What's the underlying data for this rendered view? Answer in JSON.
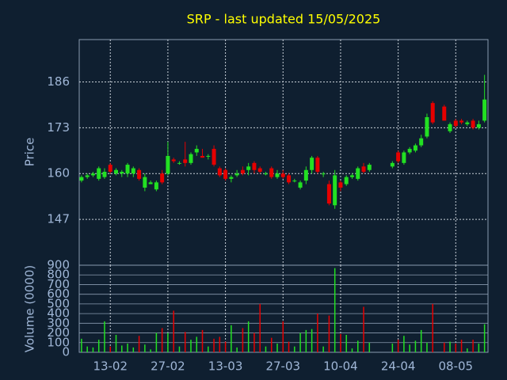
{
  "chart_data": [
    {
      "type": "candlestick",
      "title": "SRP - last updated 15/05/2025",
      "ylabel": "Price",
      "up_color": "#22e022",
      "down_color": "#e60000",
      "x": [
        "06-02",
        "07-02",
        "10-02",
        "11-02",
        "12-02",
        "13-02",
        "14-02",
        "17-02",
        "18-02",
        "19-02",
        "20-02",
        "21-02",
        "24-02",
        "25-02",
        "26-02",
        "27-02",
        "28-02",
        "03-03",
        "04-03",
        "05-03",
        "06-03",
        "07-03",
        "10-03",
        "11-03",
        "12-03",
        "13-03",
        "14-03",
        "17-03",
        "18-03",
        "19-03",
        "20-03",
        "21-03",
        "24-03",
        "25-03",
        "26-03",
        "27-03",
        "28-03",
        "31-03",
        "01-04",
        "02-04",
        "03-04",
        "04-04",
        "07-04",
        "08-04",
        "09-04",
        "10-04",
        "11-04",
        "14-04",
        "15-04",
        "16-04",
        "17-04",
        "18-04",
        "21-04",
        "22-04",
        "23-04",
        "24-04",
        "25-04",
        "28-04",
        "29-04",
        "30-04",
        "01-05",
        "02-05",
        "05-05",
        "06-05",
        "07-05",
        "08-05",
        "09-05",
        "12-05",
        "13-05",
        "14-05",
        "15-05"
      ],
      "open": [
        158,
        159,
        159.5,
        158.5,
        159,
        162.5,
        160,
        160,
        160,
        160,
        161,
        156,
        157,
        155.5,
        160,
        160,
        164,
        163,
        164,
        163,
        166,
        165,
        165,
        167,
        161.5,
        161,
        158.5,
        159.5,
        161,
        161,
        163,
        161.5,
        160,
        161.5,
        159,
        160,
        159.5,
        158,
        156,
        158,
        161,
        164.5,
        160,
        157,
        151,
        157.5,
        157,
        159,
        158.5,
        162,
        161,
        null,
        null,
        null,
        162,
        166,
        163,
        166,
        166.5,
        168,
        170.5,
        180,
        null,
        179,
        172,
        175,
        175,
        174,
        175,
        173,
        175
      ],
      "high": [
        159.5,
        160,
        160.5,
        162,
        161.5,
        163,
        161.5,
        161,
        163,
        162,
        161.5,
        160,
        158,
        158,
        161,
        169,
        164.5,
        163.5,
        169,
        166,
        168,
        167,
        165.5,
        168,
        162,
        161.5,
        159.5,
        161,
        162,
        163,
        163.5,
        162,
        160.5,
        162,
        161,
        161,
        160,
        158.5,
        158,
        162,
        165,
        165,
        160.5,
        158,
        161,
        158,
        159.5,
        160,
        162,
        163,
        163,
        null,
        null,
        null,
        163.5,
        166.5,
        166.5,
        167.5,
        168.5,
        171,
        177,
        180.5,
        null,
        179.5,
        174.5,
        175.5,
        175.5,
        175,
        175.5,
        175,
        188
      ],
      "low": [
        157.5,
        158.5,
        159,
        158,
        158.5,
        160,
        159.5,
        159,
        159,
        159,
        158,
        155,
        157,
        155,
        157,
        159.5,
        163,
        162.5,
        162,
        162.5,
        165,
        164.5,
        164,
        162,
        159,
        158,
        157.5,
        159,
        159.5,
        159.5,
        160,
        160,
        159.5,
        158.5,
        158.5,
        158.5,
        157,
        157.5,
        155.5,
        157,
        160,
        160,
        159,
        151,
        150,
        155,
        156.5,
        158.5,
        158,
        160,
        160.5,
        null,
        null,
        null,
        161.5,
        163,
        162.5,
        165.5,
        166,
        167.5,
        170,
        174,
        null,
        175,
        171.5,
        173,
        174,
        173.5,
        172.5,
        172.5,
        174.5
      ],
      "close": [
        159,
        159.5,
        160,
        161.5,
        160.5,
        160.5,
        161,
        160.5,
        162.5,
        161.5,
        158.5,
        159,
        157.5,
        157.5,
        157.5,
        165,
        163.5,
        163,
        163,
        165.5,
        167,
        164.5,
        165,
        162.5,
        159.5,
        158.5,
        159,
        160,
        160,
        162,
        161,
        160.5,
        160,
        159,
        160,
        159,
        157.5,
        158,
        157.5,
        161,
        164.5,
        160.5,
        160,
        151.5,
        159.5,
        156,
        159,
        159.5,
        161.5,
        160.5,
        162.5,
        null,
        null,
        null,
        163,
        163.5,
        166,
        167,
        168,
        170,
        176,
        174.5,
        null,
        175,
        174,
        173.5,
        174.5,
        174.5,
        173,
        174,
        181
      ],
      "ylim": [
        134,
        198
      ],
      "yticks": [
        147,
        160,
        173,
        186
      ]
    },
    {
      "type": "bar",
      "ylabel": "Volume (0000)",
      "values": [
        140,
        60,
        50,
        130,
        320,
        60,
        180,
        70,
        90,
        50,
        170,
        80,
        30,
        200,
        250,
        200,
        430,
        60,
        210,
        130,
        160,
        230,
        60,
        140,
        160,
        110,
        280,
        50,
        250,
        320,
        200,
        500,
        60,
        150,
        90,
        320,
        110,
        60,
        200,
        230,
        240,
        400,
        60,
        380,
        870,
        190,
        180,
        40,
        120,
        470,
        100,
        null,
        null,
        null,
        90,
        130,
        170,
        80,
        120,
        230,
        100,
        500,
        null,
        100,
        110,
        90,
        130,
        40,
        130,
        90,
        290
      ],
      "ylim": [
        0,
        900
      ],
      "yticks": [
        0,
        100,
        200,
        300,
        400,
        500,
        600,
        700,
        800,
        900
      ],
      "xticks": [
        "13-02",
        "27-02",
        "13-03",
        "27-03",
        "10-04",
        "24-04",
        "08-05"
      ]
    }
  ]
}
